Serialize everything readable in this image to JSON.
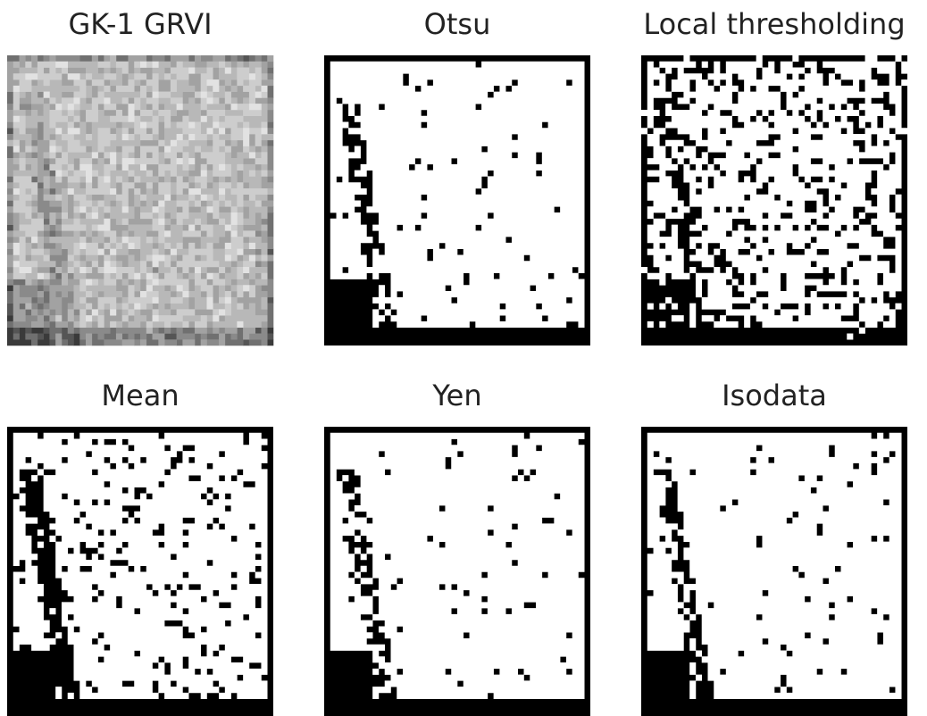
{
  "panels": [
    {
      "title": "GK-1 GRVI"
    },
    {
      "title": "Otsu"
    },
    {
      "title": "Local thresholding"
    },
    {
      "title": "Mean"
    },
    {
      "title": "Yen"
    },
    {
      "title": "Isodata"
    }
  ]
}
